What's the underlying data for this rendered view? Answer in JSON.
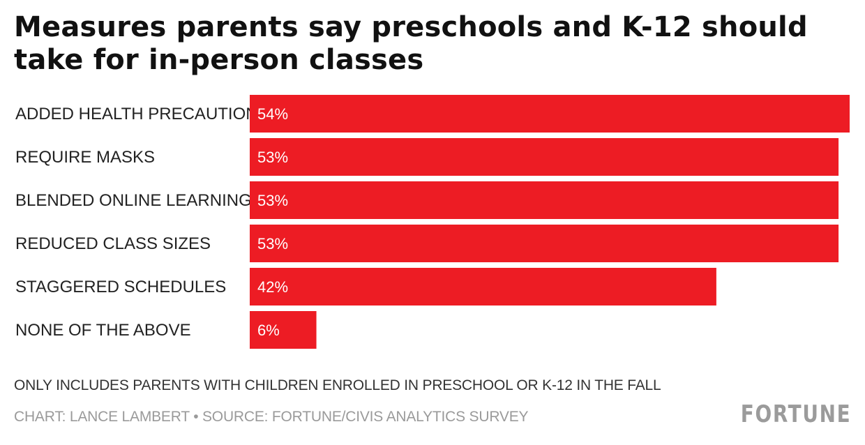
{
  "chart_data": {
    "type": "bar",
    "orientation": "horizontal",
    "title": "Measures parents say preschools and K-12 should take for in-person classes",
    "categories": [
      "ADDED HEALTH PRECAUTIONS",
      "REQUIRE MASKS",
      "BLENDED ONLINE LEARNING",
      "REDUCED CLASS SIZES",
      "STAGGERED SCHEDULES",
      "NONE OF THE ABOVE"
    ],
    "values": [
      54,
      53,
      53,
      53,
      42,
      6
    ],
    "value_labels": [
      "54%",
      "53%",
      "53%",
      "53%",
      "42%",
      "6%"
    ],
    "unit": "%",
    "xlim": [
      0,
      54
    ],
    "bar_color": "#ed1c24",
    "grid": false,
    "legend": "none"
  },
  "footer": {
    "note": "ONLY INCLUDES PARENTS WITH CHILDREN ENROLLED IN PRESCHOOL OR K-12 IN THE FALL",
    "credit": "CHART: LANCE LAMBERT • SOURCE: FORTUNE/CIVIS ANALYTICS SURVEY",
    "logo": "FORTUNE"
  }
}
